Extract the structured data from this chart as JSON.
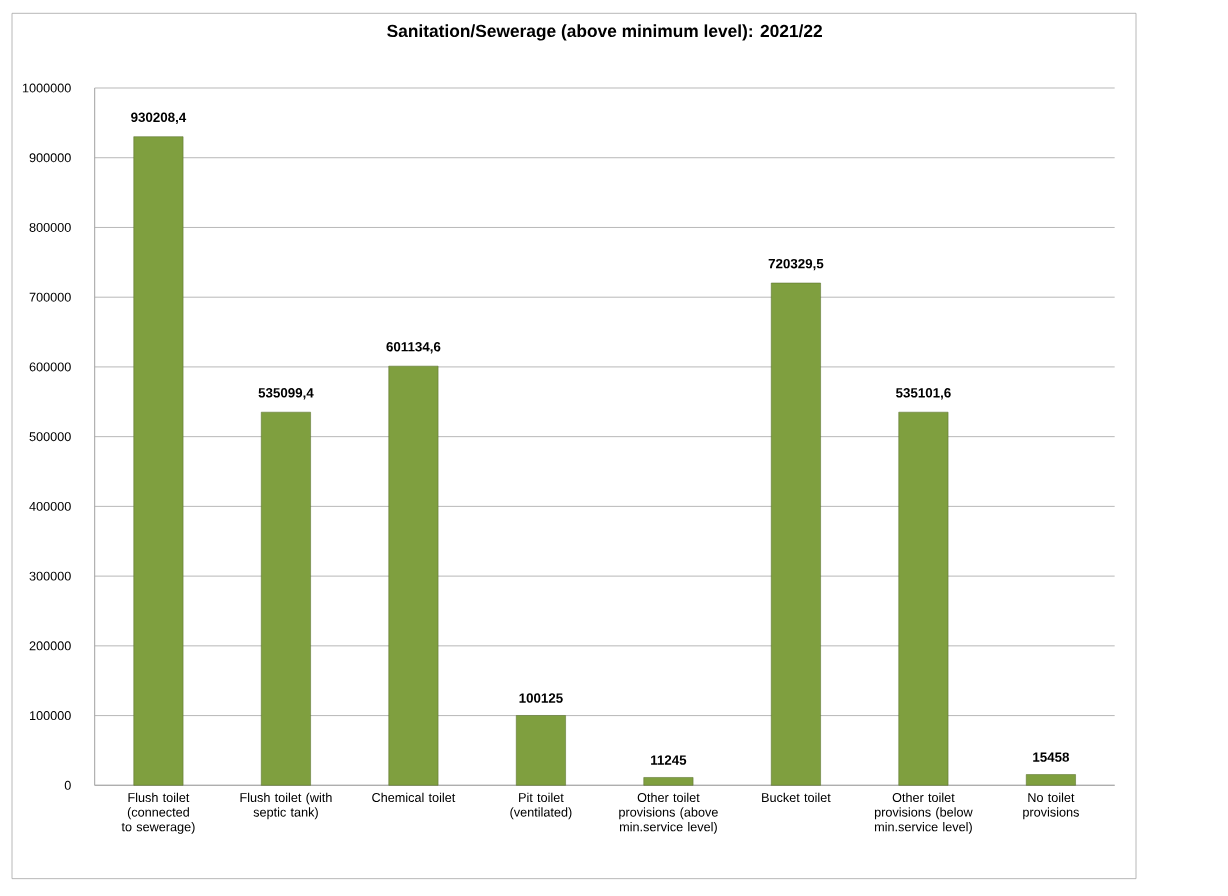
{
  "chart_data": {
    "type": "bar",
    "title": "Sanitation/Sewerage (above minimum level): 2021/22",
    "categories": [
      "Flush toilet (connected to sewerage)",
      "Flush toilet (with septic tank)",
      "Chemical toilet",
      "Pit toilet (ventilated)",
      "Other toilet provisions (above min.service level)",
      "Bucket toilet",
      "Other toilet provisions (below min.service level)",
      "No toilet provisions"
    ],
    "values": [
      930208.4,
      535099.4,
      601134.6,
      100125,
      11245,
      720329.5,
      535101.6,
      15458
    ],
    "value_labels": [
      "930208,4",
      "535099,4",
      "601134,6",
      "100125",
      "11245",
      "720329,5",
      "535101,6",
      "15458"
    ],
    "color": "#7f9f3f",
    "ylim": [
      0,
      1000000
    ],
    "yticks": [
      0,
      100000,
      200000,
      300000,
      400000,
      500000,
      600000,
      700000,
      800000,
      900000,
      1000000
    ],
    "grid": "y"
  }
}
